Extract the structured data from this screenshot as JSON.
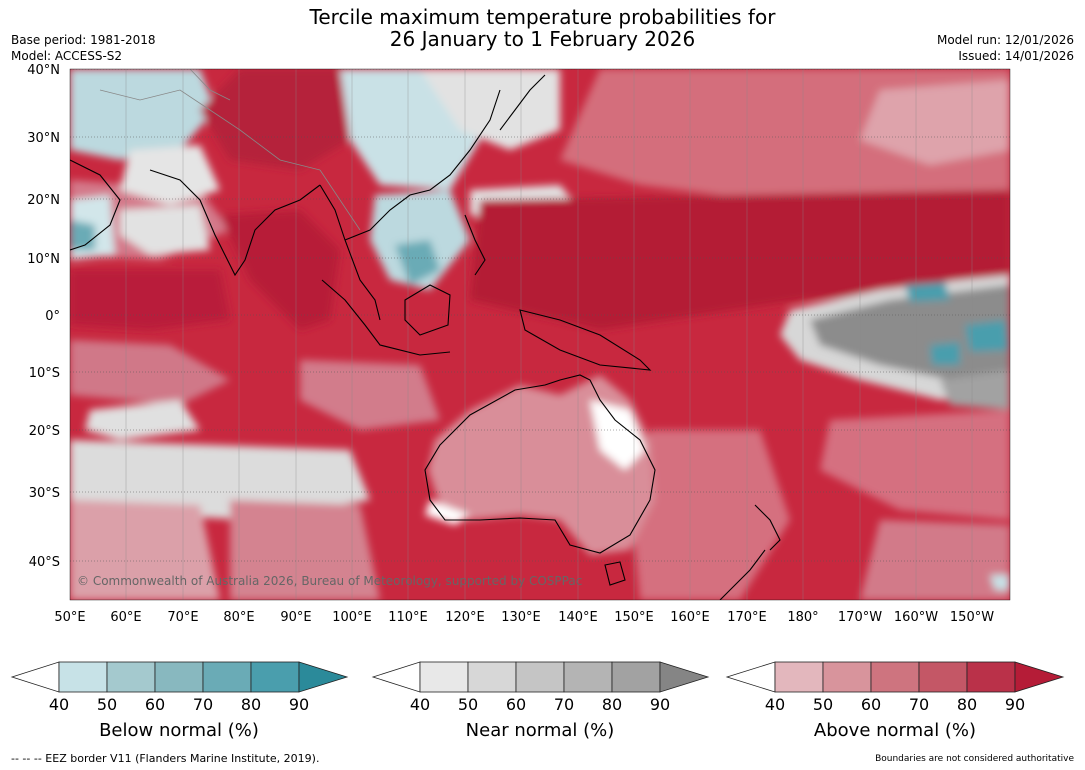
{
  "title": {
    "line1": "Tercile maximum temperature probabilities for",
    "line2": "26 January to 1 February 2026"
  },
  "meta_left": {
    "base_period": "Base period: 1981-2018",
    "model": "Model: ACCESS-S2"
  },
  "meta_right": {
    "model_run": "Model run: 12/01/2026",
    "issued": "Issued: 14/01/2026"
  },
  "map": {
    "copyright": "© Commonwealth of Australia 2026, Bureau of Meteorology, supported by COSPPac",
    "lat_labels": [
      "40°N",
      "30°N",
      "20°N",
      "10°N",
      "0°",
      "10°S",
      "20°S",
      "30°S",
      "40°S"
    ],
    "lon_labels": [
      "50°E",
      "60°E",
      "70°E",
      "80°E",
      "90°E",
      "100°E",
      "110°E",
      "120°E",
      "130°E",
      "140°E",
      "150°E",
      "160°E",
      "170°E",
      "180°",
      "170°W",
      "160°W",
      "150°W"
    ],
    "ocean_color": "#c8283f"
  },
  "colorbars": [
    {
      "name": "below",
      "title": "Below normal (%)",
      "ticks": [
        "40",
        "50",
        "60",
        "70",
        "80",
        "90"
      ],
      "colors": [
        "#c7e2e7",
        "#a4c9ce",
        "#88b8bf",
        "#6aabb6",
        "#4a9ead",
        "#2b8a9a"
      ]
    },
    {
      "name": "near",
      "title": "Near normal (%)",
      "ticks": [
        "40",
        "50",
        "60",
        "70",
        "80",
        "90"
      ],
      "colors": [
        "#e8e8e8",
        "#d7d7d7",
        "#c5c5c5",
        "#b4b4b4",
        "#a2a2a2",
        "#858585"
      ]
    },
    {
      "name": "above",
      "title": "Above normal (%)",
      "ticks": [
        "40",
        "50",
        "60",
        "70",
        "80",
        "90"
      ],
      "colors": [
        "#e3b7bd",
        "#d8949c",
        "#ce747f",
        "#c45766",
        "#ba3149",
        "#b51c37"
      ]
    }
  ],
  "footer": {
    "eez": "--  --  -- EEZ border V11 (Flanders Marine Institute, 2019).",
    "disclaimer": "Boundaries are not considered authoritative"
  }
}
